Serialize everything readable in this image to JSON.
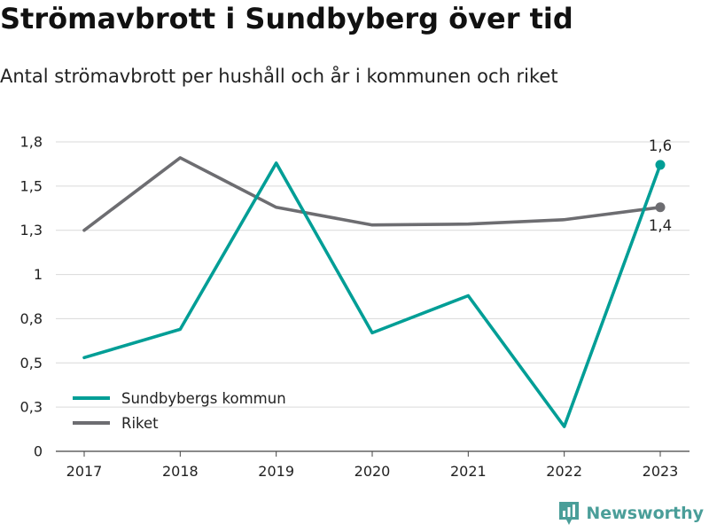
{
  "header": {
    "title": "Strömavbrott i Sundbyberg över tid",
    "subtitle": "Antal strömavbrott per hushåll och år i kommunen och riket"
  },
  "branding": {
    "name": "Newsworthy",
    "color": "#4a9e99"
  },
  "chart_data": {
    "type": "line",
    "x": [
      "2017",
      "2018",
      "2019",
      "2020",
      "2021",
      "2022",
      "2023"
    ],
    "ylim": [
      0,
      1.75
    ],
    "yticks": [
      0,
      0.25,
      0.5,
      0.75,
      1,
      1.25,
      1.5,
      1.75
    ],
    "ytick_labels": [
      "0",
      "0,3",
      "0,5",
      "0,8",
      "1",
      "1,3",
      "1,5",
      "1,8"
    ],
    "grid": true,
    "legend_position": "bottom-left",
    "series": [
      {
        "name": "Sundbybergs kommun",
        "color": "#009e96",
        "values": [
          0.53,
          0.69,
          1.63,
          0.67,
          0.88,
          0.14,
          1.62
        ],
        "end_label": "1,6"
      },
      {
        "name": "Riket",
        "color": "#6d6d71",
        "values": [
          1.25,
          1.66,
          1.38,
          1.28,
          1.285,
          1.31,
          1.38
        ],
        "end_label": "1,4"
      }
    ]
  }
}
